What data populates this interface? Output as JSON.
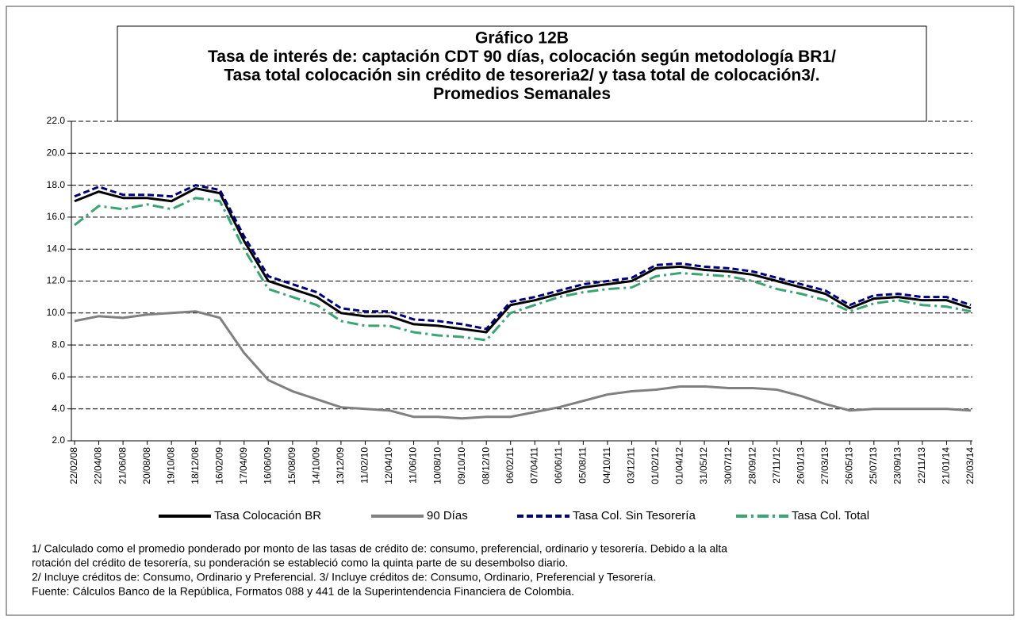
{
  "chart_data": {
    "type": "line",
    "title": [
      "Gráfico 12B",
      "Tasa de interés de: captación CDT 90 días,  colocación según metodología BR1/",
      "Tasa total colocación sin crédito de tesoreria2/ y tasa total de colocación3/.",
      "Promedios Semanales"
    ],
    "categories": [
      "22/02/08",
      "22/04/08",
      "21/06/08",
      "20/08/08",
      "19/10/08",
      "18/12/08",
      "16/02/09",
      "17/04/09",
      "16/06/09",
      "15/08/09",
      "14/10/09",
      "13/12/09",
      "11/02/10",
      "12/04/10",
      "11/06/10",
      "10/08/10",
      "09/10/10",
      "08/12/10",
      "06/02/11",
      "07/04/11",
      "06/06/11",
      "05/08/11",
      "04/10/11",
      "03/12/11",
      "01/02/12",
      "01/04/12",
      "31/05/12",
      "30/07/12",
      "28/09/12",
      "27/11/12",
      "26/01/13",
      "27/03/13",
      "26/05/13",
      "25/07/13",
      "23/09/13",
      "22/11/13",
      "21/01/14",
      "22/03/14"
    ],
    "series": [
      {
        "name": "Tasa Colocación BR",
        "color": "#000000",
        "line_style": "solid",
        "values": [
          17.0,
          17.6,
          17.2,
          17.2,
          17.0,
          17.8,
          17.5,
          14.5,
          12.0,
          11.5,
          11.0,
          10.0,
          9.8,
          9.8,
          9.3,
          9.2,
          9.0,
          8.8,
          10.5,
          10.8,
          11.2,
          11.6,
          11.8,
          12.0,
          12.8,
          12.9,
          12.7,
          12.6,
          12.4,
          12.0,
          11.6,
          11.2,
          10.3,
          10.9,
          11.0,
          10.8,
          10.8,
          10.3
        ]
      },
      {
        "name": "90 Días",
        "color": "#808080",
        "line_style": "solid",
        "values": [
          9.5,
          9.8,
          9.7,
          9.9,
          10.0,
          10.1,
          9.7,
          7.5,
          5.8,
          5.1,
          4.6,
          4.1,
          4.0,
          3.9,
          3.5,
          3.5,
          3.4,
          3.5,
          3.5,
          3.8,
          4.1,
          4.5,
          4.9,
          5.1,
          5.2,
          5.4,
          5.4,
          5.3,
          5.3,
          5.2,
          4.8,
          4.3,
          3.9,
          4.0,
          4.0,
          4.0,
          4.0,
          3.9
        ]
      },
      {
        "name": "Tasa Col. Sin Tesorería",
        "color": "#00007f",
        "line_style": "dashed",
        "values": [
          17.3,
          17.9,
          17.4,
          17.4,
          17.3,
          18.0,
          17.7,
          14.8,
          12.3,
          11.8,
          11.3,
          10.3,
          10.1,
          10.1,
          9.6,
          9.5,
          9.3,
          9.0,
          10.7,
          11.0,
          11.4,
          11.8,
          12.0,
          12.2,
          13.0,
          13.1,
          12.9,
          12.8,
          12.6,
          12.2,
          11.8,
          11.4,
          10.5,
          11.1,
          11.2,
          11.0,
          11.0,
          10.5
        ]
      },
      {
        "name": "Tasa Col. Total",
        "color": "#3aa572",
        "line_style": "dashdot",
        "values": [
          15.5,
          16.7,
          16.5,
          16.8,
          16.5,
          17.2,
          17.0,
          14.0,
          11.5,
          11.0,
          10.5,
          9.5,
          9.2,
          9.2,
          8.8,
          8.6,
          8.5,
          8.3,
          10.0,
          10.5,
          11.0,
          11.3,
          11.5,
          11.6,
          12.3,
          12.5,
          12.4,
          12.3,
          12.0,
          11.5,
          11.2,
          10.8,
          10.1,
          10.6,
          10.8,
          10.5,
          10.4,
          10.1
        ]
      }
    ],
    "ylim": [
      2,
      22
    ],
    "yticks": [
      {
        "value": 2,
        "label": "2.0"
      },
      {
        "value": 4,
        "label": "4.0"
      },
      {
        "value": 6,
        "label": "6.0"
      },
      {
        "value": 8,
        "label": "8.0"
      },
      {
        "value": 10,
        "label": "10.0"
      },
      {
        "value": 12,
        "label": "12.0"
      },
      {
        "value": 14,
        "label": "14.0"
      },
      {
        "value": 16,
        "label": "16.0"
      },
      {
        "value": 18,
        "label": "18.0"
      },
      {
        "value": 20,
        "label": "20.0"
      },
      {
        "value": 22,
        "label": "22.0"
      }
    ],
    "grid": true,
    "legend": "bottom"
  },
  "notes": [
    "1/ Calculado como el promedio ponderado por monto de las tasas de crédito de: consumo, preferencial, ordinario y tesorería.  Debido a la alta",
    "rotación del crédito de tesorería,  su ponderación se estableció como la quinta parte de su desembolso diario.",
    "2/ Incluye créditos de: Consumo, Ordinario y Preferencial.   3/ Incluye créditos de: Consumo, Ordinario, Preferencial y Tesorería.",
    "Fuente: Cálculos Banco de la República, Formatos 088 y 441 de la Superintendencia Financiera de Colombia."
  ]
}
